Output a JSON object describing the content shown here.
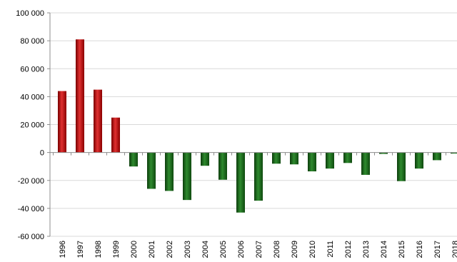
{
  "chart_data": {
    "type": "bar",
    "title": "",
    "xlabel": "",
    "ylabel": "",
    "ylim": [
      -60000,
      100000
    ],
    "ytick_step": 20000,
    "ytick_labels": [
      "-60 000",
      "-40 000",
      "-20 000",
      "0",
      "20 000",
      "40 000",
      "60 000",
      "80 000",
      "100 000"
    ],
    "grid": true,
    "categories": [
      "1996",
      "1997",
      "1998",
      "1999",
      "2000",
      "2001",
      "2002",
      "2003",
      "2004",
      "2005",
      "2006",
      "2007",
      "2008",
      "2009",
      "2010",
      "2011",
      "2012",
      "2013",
      "2014",
      "2015",
      "2016",
      "2017",
      "2018"
    ],
    "values": [
      44000,
      81000,
      45000,
      25000,
      -10000,
      -26000,
      -27500,
      -34000,
      -9500,
      -19500,
      -43000,
      -34500,
      -8000,
      -8500,
      -13500,
      -11500,
      -7500,
      -16000,
      -1000,
      -20500,
      -11500,
      -5500,
      -500
    ],
    "colors": {
      "positive": "#c00000",
      "negative": "#1e6b1e",
      "grid": "#d9d9d9",
      "axis": "#8c8c8c"
    }
  }
}
